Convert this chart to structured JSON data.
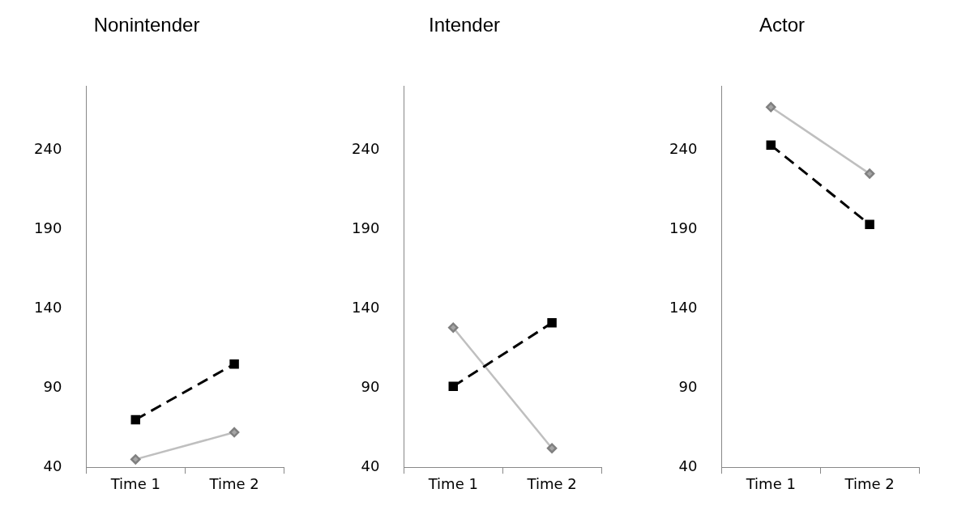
{
  "chart_data": [
    {
      "type": "line",
      "title": "Nonintender",
      "categories": [
        "Time 1",
        "Time 2"
      ],
      "ylim": [
        40,
        280
      ],
      "yticks": [
        40,
        90,
        140,
        190,
        240
      ],
      "series": [
        {
          "color": "#000000",
          "values": [
            70,
            105
          ],
          "marker": "square",
          "line_style": "dashed"
        },
        {
          "color": "#bfbfbf",
          "values": [
            45,
            62
          ],
          "marker": "diamond",
          "line_style": "solid"
        }
      ]
    },
    {
      "type": "line",
      "title": "Intender",
      "categories": [
        "Time 1",
        "Time 2"
      ],
      "ylim": [
        40,
        280
      ],
      "yticks": [
        40,
        90,
        140,
        190,
        240
      ],
      "series": [
        {
          "color": "#000000",
          "values": [
            91,
            131
          ],
          "marker": "square",
          "line_style": "dashed"
        },
        {
          "color": "#bfbfbf",
          "values": [
            128,
            52
          ],
          "marker": "diamond",
          "line_style": "solid"
        }
      ]
    },
    {
      "type": "line",
      "title": "Actor",
      "categories": [
        "Time 1",
        "Time 2"
      ],
      "ylim": [
        40,
        280
      ],
      "yticks": [
        40,
        90,
        140,
        190,
        240
      ],
      "series": [
        {
          "color": "#000000",
          "values": [
            243,
            193
          ],
          "marker": "square",
          "line_style": "dashed"
        },
        {
          "color": "#bfbfbf",
          "values": [
            267,
            225
          ],
          "marker": "diamond",
          "line_style": "solid"
        }
      ]
    }
  ]
}
